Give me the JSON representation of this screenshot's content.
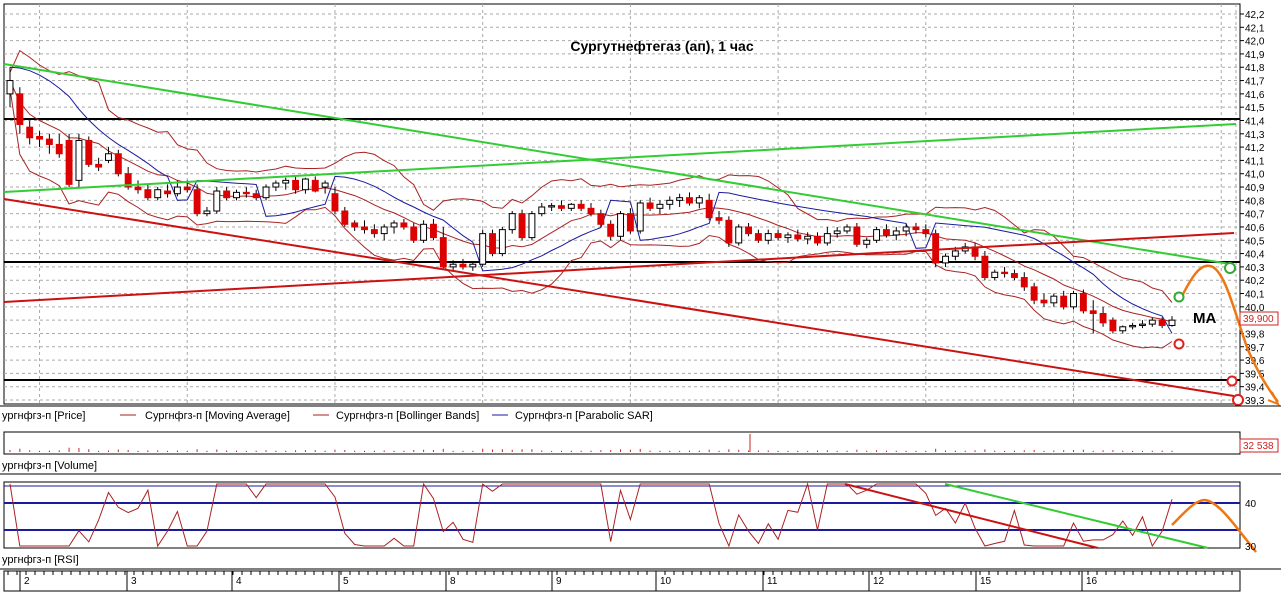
{
  "chart_data": [
    {
      "type": "candlestick",
      "title": "Сургутнефтегаз (ап),  1 час",
      "ylim": [
        39.3,
        42.2
      ],
      "yticks": [
        "42,2",
        "42,1",
        "42,0",
        "41,9",
        "41,8",
        "41,7",
        "41,6",
        "41,5",
        "41,4",
        "41,3",
        "41,2",
        "41,1",
        "41,0",
        "40,9",
        "40,8",
        "40,7",
        "40,6",
        "40,5",
        "40,4",
        "40,3",
        "40,2",
        "40,1",
        "40,0",
        "39,9",
        "39,8",
        "39,7",
        "39,6",
        "39,5",
        "39,4",
        "39,3"
      ],
      "last_price_label": "39,900",
      "last_price": 39.9,
      "annotation": "MA",
      "x_day_labels": [
        "2",
        "3",
        "4",
        "5",
        "8",
        "9",
        "10",
        "11",
        "12",
        "15",
        "16"
      ],
      "legend": [
        "ургнфгз-п [Price]",
        "Сургнфгз-п [Moving Average]",
        "Сургнфгз-п [Bollinger Bands]",
        "Сургнфгз-п [Parabolic SAR]"
      ],
      "colors": {
        "up": "#ffffff",
        "down": "#dd0000",
        "ma": "#aa2222",
        "bollinger": "#aa2222",
        "sar": "#1a1aa0",
        "support": "#000000",
        "trend_green": "#33cc33",
        "trend_red": "#cc1111",
        "forecast": "#ee7711"
      },
      "candles": [
        {
          "o": 41.6,
          "h": 41.8,
          "l": 41.5,
          "c": 41.7
        },
        {
          "o": 41.6,
          "h": 41.65,
          "l": 41.3,
          "c": 41.37
        },
        {
          "o": 41.35,
          "h": 41.4,
          "l": 41.22,
          "c": 41.27
        },
        {
          "o": 41.28,
          "h": 41.32,
          "l": 41.2,
          "c": 41.26
        },
        {
          "o": 41.26,
          "h": 41.3,
          "l": 41.15,
          "c": 41.22
        },
        {
          "o": 41.22,
          "h": 41.3,
          "l": 41.12,
          "c": 41.15
        },
        {
          "o": 41.25,
          "h": 41.3,
          "l": 40.9,
          "c": 40.92
        },
        {
          "o": 40.95,
          "h": 41.3,
          "l": 40.9,
          "c": 41.25
        },
        {
          "o": 41.25,
          "h": 41.28,
          "l": 41.05,
          "c": 41.07
        },
        {
          "o": 41.07,
          "h": 41.12,
          "l": 41.02,
          "c": 41.05
        },
        {
          "o": 41.1,
          "h": 41.2,
          "l": 41.08,
          "c": 41.15
        },
        {
          "o": 41.15,
          "h": 41.18,
          "l": 40.98,
          "c": 41.0
        },
        {
          "o": 41.0,
          "h": 41.05,
          "l": 40.88,
          "c": 40.9
        },
        {
          "o": 40.9,
          "h": 40.95,
          "l": 40.85,
          "c": 40.88
        },
        {
          "o": 40.88,
          "h": 40.92,
          "l": 40.8,
          "c": 40.82
        },
        {
          "o": 40.82,
          "h": 40.9,
          "l": 40.8,
          "c": 40.88
        },
        {
          "o": 40.87,
          "h": 40.92,
          "l": 40.82,
          "c": 40.85
        },
        {
          "o": 40.85,
          "h": 40.95,
          "l": 40.83,
          "c": 40.9
        },
        {
          "o": 40.9,
          "h": 40.95,
          "l": 40.86,
          "c": 40.88
        },
        {
          "o": 40.88,
          "h": 40.92,
          "l": 40.68,
          "c": 40.7
        },
        {
          "o": 40.7,
          "h": 40.75,
          "l": 40.68,
          "c": 40.72
        },
        {
          "o": 40.72,
          "h": 40.9,
          "l": 40.7,
          "c": 40.87
        },
        {
          "o": 40.87,
          "h": 40.9,
          "l": 40.8,
          "c": 40.82
        },
        {
          "o": 40.82,
          "h": 40.88,
          "l": 40.8,
          "c": 40.86
        },
        {
          "o": 40.86,
          "h": 40.9,
          "l": 40.82,
          "c": 40.85
        },
        {
          "o": 40.85,
          "h": 40.88,
          "l": 40.8,
          "c": 40.82
        },
        {
          "o": 40.82,
          "h": 40.92,
          "l": 40.8,
          "c": 40.9
        },
        {
          "o": 40.9,
          "h": 40.95,
          "l": 40.87,
          "c": 40.93
        },
        {
          "o": 40.93,
          "h": 40.97,
          "l": 40.88,
          "c": 40.95
        },
        {
          "o": 40.95,
          "h": 40.98,
          "l": 40.85,
          "c": 40.88
        },
        {
          "o": 40.88,
          "h": 40.97,
          "l": 40.85,
          "c": 40.96
        },
        {
          "o": 40.95,
          "h": 40.98,
          "l": 40.86,
          "c": 40.87
        },
        {
          "o": 40.9,
          "h": 40.95,
          "l": 40.85,
          "c": 40.93
        },
        {
          "o": 40.85,
          "h": 40.9,
          "l": 40.7,
          "c": 40.72
        },
        {
          "o": 40.72,
          "h": 40.75,
          "l": 40.6,
          "c": 40.62
        },
        {
          "o": 40.63,
          "h": 40.65,
          "l": 40.57,
          "c": 40.6
        },
        {
          "o": 40.6,
          "h": 40.65,
          "l": 40.55,
          "c": 40.58
        },
        {
          "o": 40.58,
          "h": 40.62,
          "l": 40.52,
          "c": 40.55
        },
        {
          "o": 40.55,
          "h": 40.62,
          "l": 40.5,
          "c": 40.6
        },
        {
          "o": 40.6,
          "h": 40.65,
          "l": 40.55,
          "c": 40.63
        },
        {
          "o": 40.63,
          "h": 40.66,
          "l": 40.58,
          "c": 40.6
        },
        {
          "o": 40.6,
          "h": 40.63,
          "l": 40.48,
          "c": 40.5
        },
        {
          "o": 40.5,
          "h": 40.65,
          "l": 40.48,
          "c": 40.62
        },
        {
          "o": 40.62,
          "h": 40.66,
          "l": 40.5,
          "c": 40.52
        },
        {
          "o": 40.52,
          "h": 40.6,
          "l": 40.28,
          "c": 40.3
        },
        {
          "o": 40.3,
          "h": 40.35,
          "l": 40.27,
          "c": 40.32
        },
        {
          "o": 40.32,
          "h": 40.36,
          "l": 40.28,
          "c": 40.3
        },
        {
          "o": 40.3,
          "h": 40.34,
          "l": 40.27,
          "c": 40.32
        },
        {
          "o": 40.32,
          "h": 40.58,
          "l": 40.3,
          "c": 40.55
        },
        {
          "o": 40.55,
          "h": 40.58,
          "l": 40.38,
          "c": 40.4
        },
        {
          "o": 40.4,
          "h": 40.6,
          "l": 40.38,
          "c": 40.58
        },
        {
          "o": 40.58,
          "h": 40.72,
          "l": 40.55,
          "c": 40.7
        },
        {
          "o": 40.7,
          "h": 40.73,
          "l": 40.5,
          "c": 40.52
        },
        {
          "o": 40.52,
          "h": 40.72,
          "l": 40.5,
          "c": 40.7
        },
        {
          "o": 40.7,
          "h": 40.78,
          "l": 40.68,
          "c": 40.75
        },
        {
          "o": 40.75,
          "h": 40.78,
          "l": 40.72,
          "c": 40.76
        },
        {
          "o": 40.76,
          "h": 40.8,
          "l": 40.72,
          "c": 40.74
        },
        {
          "o": 40.74,
          "h": 40.78,
          "l": 40.72,
          "c": 40.77
        },
        {
          "o": 40.77,
          "h": 40.8,
          "l": 40.72,
          "c": 40.74
        },
        {
          "o": 40.74,
          "h": 40.78,
          "l": 40.68,
          "c": 40.7
        },
        {
          "o": 40.7,
          "h": 40.73,
          "l": 40.6,
          "c": 40.62
        },
        {
          "o": 40.62,
          "h": 40.65,
          "l": 40.5,
          "c": 40.53
        },
        {
          "o": 40.53,
          "h": 40.72,
          "l": 40.5,
          "c": 40.7
        },
        {
          "o": 40.7,
          "h": 40.74,
          "l": 40.55,
          "c": 40.57
        },
        {
          "o": 40.57,
          "h": 40.8,
          "l": 40.55,
          "c": 40.78
        },
        {
          "o": 40.78,
          "h": 40.82,
          "l": 40.72,
          "c": 40.74
        },
        {
          "o": 40.74,
          "h": 40.8,
          "l": 40.7,
          "c": 40.77
        },
        {
          "o": 40.77,
          "h": 40.83,
          "l": 40.73,
          "c": 40.8
        },
        {
          "o": 40.8,
          "h": 40.85,
          "l": 40.75,
          "c": 40.82
        },
        {
          "o": 40.82,
          "h": 40.86,
          "l": 40.76,
          "c": 40.78
        },
        {
          "o": 40.78,
          "h": 40.84,
          "l": 40.74,
          "c": 40.82
        },
        {
          "o": 40.8,
          "h": 40.85,
          "l": 40.65,
          "c": 40.67
        },
        {
          "o": 40.67,
          "h": 40.72,
          "l": 40.62,
          "c": 40.65
        },
        {
          "o": 40.65,
          "h": 40.68,
          "l": 40.45,
          "c": 40.48
        },
        {
          "o": 40.48,
          "h": 40.62,
          "l": 40.46,
          "c": 40.6
        },
        {
          "o": 40.6,
          "h": 40.63,
          "l": 40.53,
          "c": 40.55
        },
        {
          "o": 40.55,
          "h": 40.58,
          "l": 40.48,
          "c": 40.5
        },
        {
          "o": 40.5,
          "h": 40.58,
          "l": 40.47,
          "c": 40.55
        },
        {
          "o": 40.55,
          "h": 40.58,
          "l": 40.5,
          "c": 40.52
        },
        {
          "o": 40.52,
          "h": 40.56,
          "l": 40.48,
          "c": 40.54
        },
        {
          "o": 40.54,
          "h": 40.58,
          "l": 40.49,
          "c": 40.51
        },
        {
          "o": 40.51,
          "h": 40.56,
          "l": 40.47,
          "c": 40.53
        },
        {
          "o": 40.53,
          "h": 40.56,
          "l": 40.46,
          "c": 40.48
        },
        {
          "o": 40.48,
          "h": 40.6,
          "l": 40.46,
          "c": 40.55
        },
        {
          "o": 40.55,
          "h": 40.6,
          "l": 40.52,
          "c": 40.57
        },
        {
          "o": 40.57,
          "h": 40.62,
          "l": 40.55,
          "c": 40.6
        },
        {
          "o": 40.6,
          "h": 40.63,
          "l": 40.45,
          "c": 40.47
        },
        {
          "o": 40.47,
          "h": 40.52,
          "l": 40.44,
          "c": 40.5
        },
        {
          "o": 40.5,
          "h": 40.6,
          "l": 40.48,
          "c": 40.58
        },
        {
          "o": 40.58,
          "h": 40.62,
          "l": 40.52,
          "c": 40.54
        },
        {
          "o": 40.54,
          "h": 40.6,
          "l": 40.5,
          "c": 40.57
        },
        {
          "o": 40.57,
          "h": 40.62,
          "l": 40.53,
          "c": 40.6
        },
        {
          "o": 40.6,
          "h": 40.63,
          "l": 40.55,
          "c": 40.58
        },
        {
          "o": 40.58,
          "h": 40.62,
          "l": 40.52,
          "c": 40.55
        },
        {
          "o": 40.55,
          "h": 40.58,
          "l": 40.3,
          "c": 40.33
        },
        {
          "o": 40.33,
          "h": 40.4,
          "l": 40.3,
          "c": 40.38
        },
        {
          "o": 40.38,
          "h": 40.45,
          "l": 40.35,
          "c": 40.42
        },
        {
          "o": 40.42,
          "h": 40.48,
          "l": 40.4,
          "c": 40.45
        },
        {
          "o": 40.45,
          "h": 40.48,
          "l": 40.35,
          "c": 40.38
        },
        {
          "o": 40.38,
          "h": 40.42,
          "l": 40.2,
          "c": 40.22
        },
        {
          "o": 40.22,
          "h": 40.28,
          "l": 40.2,
          "c": 40.26
        },
        {
          "o": 40.26,
          "h": 40.3,
          "l": 40.22,
          "c": 40.25
        },
        {
          "o": 40.25,
          "h": 40.28,
          "l": 40.2,
          "c": 40.22
        },
        {
          "o": 40.22,
          "h": 40.26,
          "l": 40.12,
          "c": 40.15
        },
        {
          "o": 40.15,
          "h": 40.18,
          "l": 40.02,
          "c": 40.05
        },
        {
          "o": 40.05,
          "h": 40.1,
          "l": 40.0,
          "c": 40.03
        },
        {
          "o": 40.03,
          "h": 40.1,
          "l": 40.0,
          "c": 40.08
        },
        {
          "o": 40.08,
          "h": 40.12,
          "l": 39.98,
          "c": 40.0
        },
        {
          "o": 40.0,
          "h": 40.12,
          "l": 39.98,
          "c": 40.1
        },
        {
          "o": 40.1,
          "h": 40.13,
          "l": 39.95,
          "c": 39.97
        },
        {
          "o": 39.97,
          "h": 40.05,
          "l": 39.8,
          "c": 39.95
        },
        {
          "o": 39.95,
          "h": 40.0,
          "l": 39.85,
          "c": 39.88
        },
        {
          "o": 39.9,
          "h": 39.92,
          "l": 39.8,
          "c": 39.82
        },
        {
          "o": 39.82,
          "h": 39.86,
          "l": 39.8,
          "c": 39.85
        },
        {
          "o": 39.85,
          "h": 39.88,
          "l": 39.83,
          "c": 39.86
        },
        {
          "o": 39.86,
          "h": 39.9,
          "l": 39.84,
          "c": 39.87
        },
        {
          "o": 39.87,
          "h": 39.92,
          "l": 39.85,
          "c": 39.9
        },
        {
          "o": 39.9,
          "h": 39.92,
          "l": 39.84,
          "c": 39.86
        },
        {
          "o": 39.86,
          "h": 39.93,
          "l": 39.85,
          "c": 39.9
        }
      ]
    },
    {
      "type": "bar",
      "title": "",
      "legend": [
        "ургнфгз-п [Volume]"
      ],
      "last_value_label": "32 538",
      "spike_value": 32538
    },
    {
      "type": "line",
      "title": "",
      "legend": [
        "ургнфгз-п [RSI]"
      ],
      "yticks": [
        "40",
        "30"
      ],
      "levels": [
        40,
        30
      ]
    }
  ]
}
